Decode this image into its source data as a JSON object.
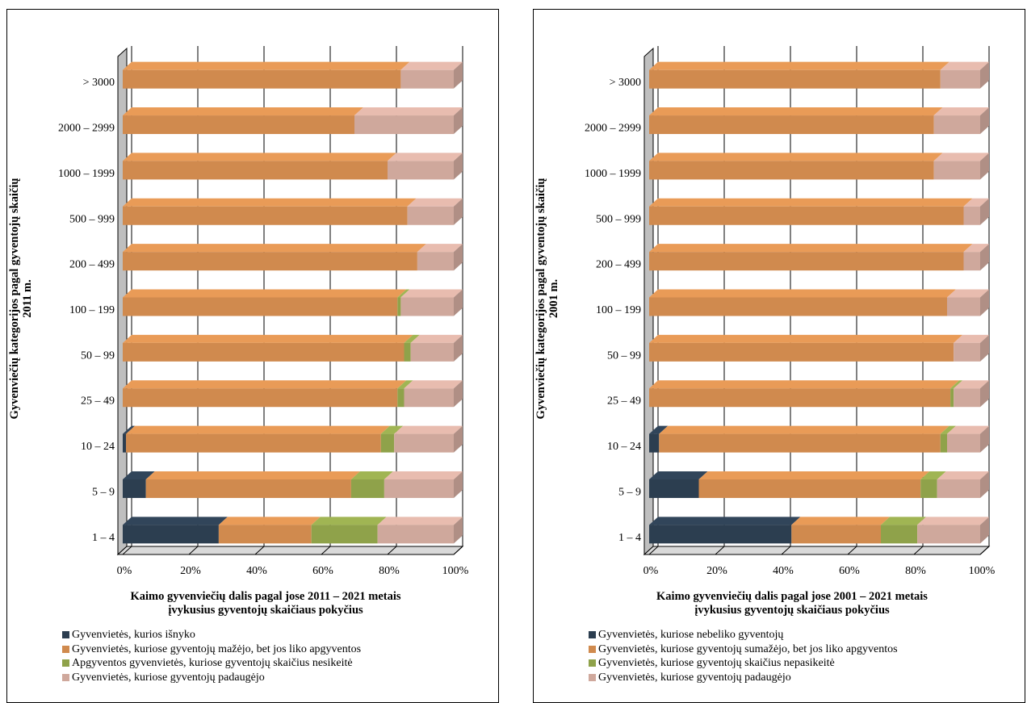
{
  "colors": {
    "disappeared": "#2c3e50",
    "decreased": "#d08a4e",
    "unchanged": "#8fa24a",
    "increased": "#cfa89c",
    "grid": "#000000",
    "wall": "#ffffff",
    "side": "#bfbfbf"
  },
  "chart_data": [
    {
      "type": "bar",
      "orientation": "horizontal",
      "stacked": "percent",
      "categories": [
        "1 – 4",
        "5 – 9",
        "10 – 24",
        "25 – 49",
        "50 – 99",
        "100 – 199",
        "200 – 499",
        "500 – 999",
        "1000 – 1999",
        "2000 – 2999",
        "> 3000"
      ],
      "series": [
        {
          "name": "Gyvenvietės, kurios išnyko",
          "color": "#2c3e50",
          "values": [
            29,
            7,
            1,
            0,
            0,
            0,
            0,
            0,
            0,
            0,
            0
          ]
        },
        {
          "name": "Gyvenvietės, kuriose gyventojų mažėjo, bet jos liko apgyventos",
          "color": "#d08a4e",
          "values": [
            28,
            62,
            77,
            83,
            85,
            83,
            89,
            86,
            80,
            70,
            84
          ]
        },
        {
          "name": "Apgyventos gyvenvietės, kuriose gyventojų skaičius nesikeitė",
          "color": "#8fa24a",
          "values": [
            20,
            10,
            4,
            2,
            2,
            1,
            0,
            0,
            0,
            0,
            0
          ]
        },
        {
          "name": "Gyvenvietės, kuriose gyventojų padaugėjo",
          "color": "#cfa89c",
          "values": [
            23,
            21,
            18,
            15,
            13,
            16,
            11,
            14,
            20,
            30,
            16
          ]
        }
      ],
      "xlabel_lines": [
        "Kaimo gyvenviečių dalis pagal jose 2011 – 2021 metais",
        "įvykusius gyventojų skaičiaus pokyčius"
      ],
      "ylabel_lines": [
        "Gyvenviečių kategorijos pagal gyventojų skaičių",
        "2011 m."
      ],
      "xticks": [
        "0%",
        "20%",
        "40%",
        "60%",
        "80%",
        "100%"
      ],
      "xlim": [
        0,
        100
      ],
      "legend_position": "bottom"
    },
    {
      "type": "bar",
      "orientation": "horizontal",
      "stacked": "percent",
      "categories": [
        "1 – 4",
        "5 – 9",
        "10 – 24",
        "25 – 49",
        "50 – 99",
        "100 – 199",
        "200 – 499",
        "500 – 999",
        "1000 – 1999",
        "2000 – 2999",
        "> 3000"
      ],
      "series": [
        {
          "name": "Gyvenvietės, kuriose nebeliko gyventojų",
          "color": "#2c3e50",
          "values": [
            43,
            15,
            3,
            0,
            0,
            0,
            0,
            0,
            0,
            0,
            0
          ]
        },
        {
          "name": "Gyvenvietės, kuriose gyventojų sumažėjo, bet jos liko apgyventos",
          "color": "#d08a4e",
          "values": [
            27,
            67,
            85,
            91,
            92,
            90,
            95,
            95,
            86,
            86,
            88
          ]
        },
        {
          "name": "Gyvenvietės, kuriose gyventojų skaičius nepasikeitė",
          "color": "#8fa24a",
          "values": [
            11,
            5,
            2,
            1,
            0,
            0,
            0,
            0,
            0,
            0,
            0
          ]
        },
        {
          "name": "Gyvenvietės, kuriose gyventojų padaugėjo",
          "color": "#cfa89c",
          "values": [
            19,
            13,
            10,
            8,
            8,
            10,
            5,
            5,
            14,
            14,
            12
          ]
        }
      ],
      "xlabel_lines": [
        "Kaimo gyvenviečių dalis pagal jose 2001 – 2021 metais",
        "įvykusius gyventojų skaičiaus pokyčius"
      ],
      "ylabel_lines": [
        "Gyvenviečių kategorijos pagal gyventojų skaičių",
        "2001 m."
      ],
      "xticks": [
        "0%",
        "20%",
        "40%",
        "60%",
        "80%",
        "100%"
      ],
      "xlim": [
        0,
        100
      ],
      "legend_position": "bottom"
    }
  ]
}
